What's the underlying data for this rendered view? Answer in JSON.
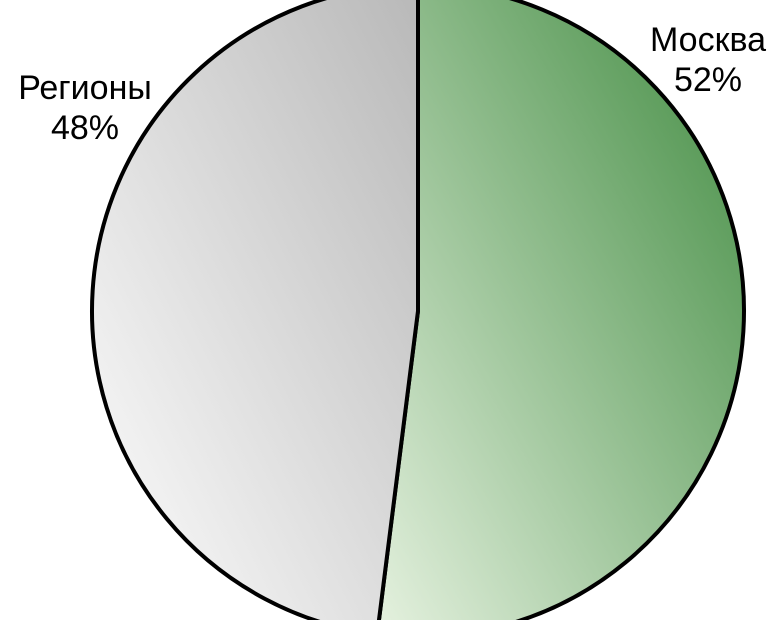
{
  "chart_data": {
    "type": "pie",
    "start_angle_deg": 0,
    "direction": "clockwise",
    "slices": [
      {
        "name": "Москва",
        "value": 52,
        "value_label": "52%",
        "color_dark": "#3f8a3f",
        "color_light": "#e6f2e0"
      },
      {
        "name": "Регионы",
        "value": 48,
        "value_label": "48%",
        "color_dark": "#b8b8b8",
        "color_light": "#ffffff"
      }
    ],
    "border_color": "#000000"
  }
}
